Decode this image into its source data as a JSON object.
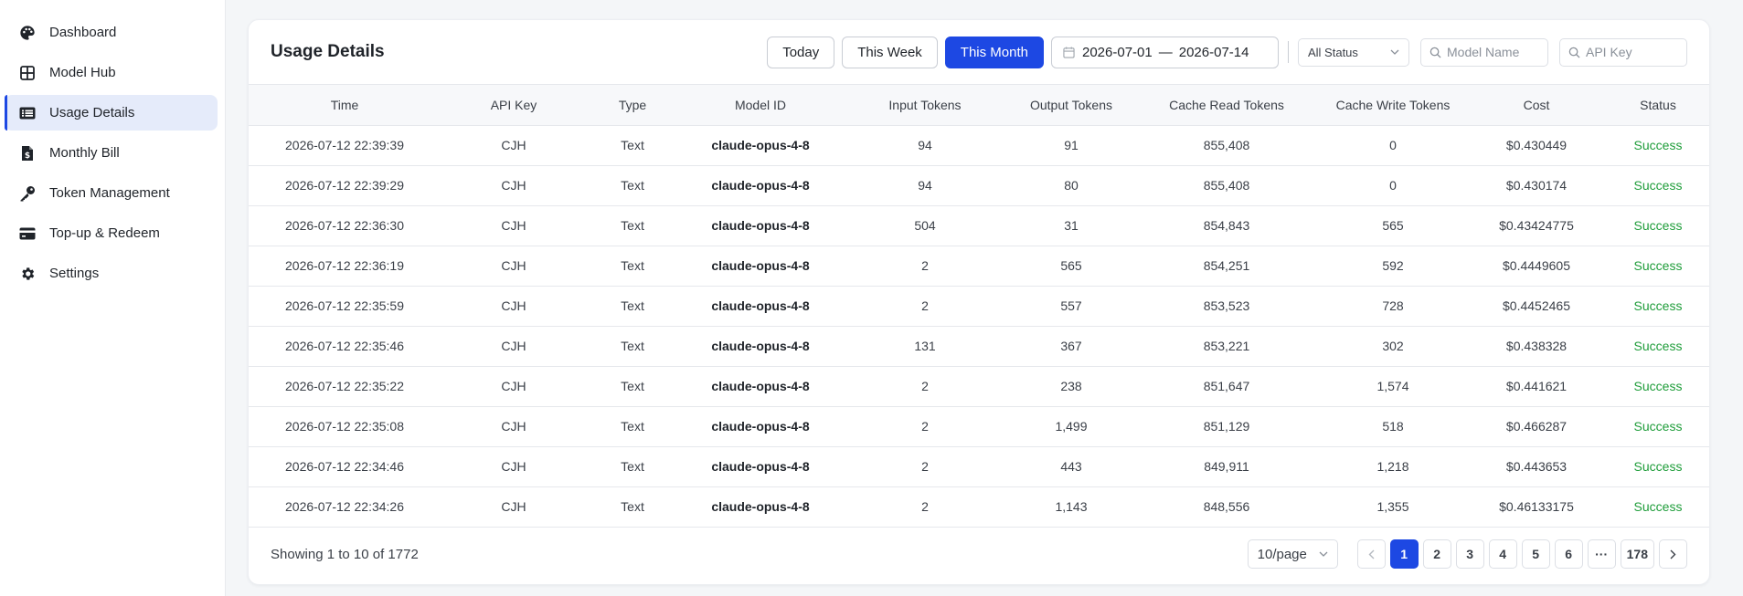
{
  "sidebar": {
    "items": [
      {
        "label": "Dashboard",
        "icon": "palette-icon",
        "active": false
      },
      {
        "label": "Model Hub",
        "icon": "grid-icon",
        "active": false
      },
      {
        "label": "Usage Details",
        "icon": "list-icon",
        "active": true
      },
      {
        "label": "Monthly Bill",
        "icon": "bill-icon",
        "active": false
      },
      {
        "label": "Token Management",
        "icon": "key-icon",
        "active": false
      },
      {
        "label": "Top-up & Redeem",
        "icon": "card-icon",
        "active": false
      },
      {
        "label": "Settings",
        "icon": "gear-icon",
        "active": false
      }
    ]
  },
  "header": {
    "title": "Usage Details",
    "buttons": {
      "today": "Today",
      "week": "This Week",
      "month": "This Month"
    },
    "date_start": "2026-07-01",
    "date_sep": "—",
    "date_end": "2026-07-14",
    "status_select": "All Status",
    "model_placeholder": "Model Name",
    "apikey_placeholder": "API Key"
  },
  "table": {
    "columns": [
      "Time",
      "API Key",
      "Type",
      "Model ID",
      "Input Tokens",
      "Output Tokens",
      "Cache Read Tokens",
      "Cache Write Tokens",
      "Cost",
      "Status"
    ],
    "rows": [
      [
        "2026-07-12 22:39:39",
        "CJH",
        "Text",
        "claude-opus-4-8",
        "94",
        "91",
        "855,408",
        "0",
        "$0.430449",
        "Success"
      ],
      [
        "2026-07-12 22:39:29",
        "CJH",
        "Text",
        "claude-opus-4-8",
        "94",
        "80",
        "855,408",
        "0",
        "$0.430174",
        "Success"
      ],
      [
        "2026-07-12 22:36:30",
        "CJH",
        "Text",
        "claude-opus-4-8",
        "504",
        "31",
        "854,843",
        "565",
        "$0.43424775",
        "Success"
      ],
      [
        "2026-07-12 22:36:19",
        "CJH",
        "Text",
        "claude-opus-4-8",
        "2",
        "565",
        "854,251",
        "592",
        "$0.4449605",
        "Success"
      ],
      [
        "2026-07-12 22:35:59",
        "CJH",
        "Text",
        "claude-opus-4-8",
        "2",
        "557",
        "853,523",
        "728",
        "$0.4452465",
        "Success"
      ],
      [
        "2026-07-12 22:35:46",
        "CJH",
        "Text",
        "claude-opus-4-8",
        "131",
        "367",
        "853,221",
        "302",
        "$0.438328",
        "Success"
      ],
      [
        "2026-07-12 22:35:22",
        "CJH",
        "Text",
        "claude-opus-4-8",
        "2",
        "238",
        "851,647",
        "1,574",
        "$0.441621",
        "Success"
      ],
      [
        "2026-07-12 22:35:08",
        "CJH",
        "Text",
        "claude-opus-4-8",
        "2",
        "1,499",
        "851,129",
        "518",
        "$0.466287",
        "Success"
      ],
      [
        "2026-07-12 22:34:46",
        "CJH",
        "Text",
        "claude-opus-4-8",
        "2",
        "443",
        "849,911",
        "1,218",
        "$0.443653",
        "Success"
      ],
      [
        "2026-07-12 22:34:26",
        "CJH",
        "Text",
        "claude-opus-4-8",
        "2",
        "1,143",
        "848,556",
        "1,355",
        "$0.46133175",
        "Success"
      ]
    ]
  },
  "footer": {
    "showing": "Showing 1 to 10 of 1772",
    "page_size": "10/page",
    "pages": [
      "1",
      "2",
      "3",
      "4",
      "5",
      "6",
      "···",
      "178"
    ],
    "current_page": "1"
  },
  "colors": {
    "accent": "#1d48e3",
    "success": "#1f9d3a",
    "active_bg": "#e5ebfa"
  }
}
